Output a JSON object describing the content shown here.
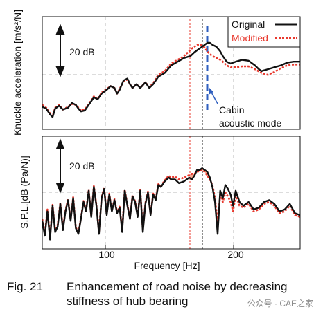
{
  "chart_data": [
    {
      "type": "line",
      "ylabel": "Knuckle acceleration [m/s²/N]",
      "xlim": [
        50,
        250
      ],
      "scale_label": "20 dB",
      "legend": {
        "position": "top-right",
        "entries": [
          "Original",
          "Modified"
        ]
      },
      "annotations": {
        "mode_label_line1": "Cabin",
        "mode_label_line2": "acoustic mode",
        "mode_x": 181
      },
      "series": [
        {
          "name": "Original",
          "color": "#111111",
          "x": [
            50,
            53,
            56,
            58,
            60,
            63,
            66,
            70,
            73,
            76,
            78,
            80,
            83,
            86,
            88,
            90,
            93,
            96,
            100,
            103,
            106,
            108,
            110,
            113,
            116,
            118,
            120,
            123,
            126,
            130,
            133,
            136,
            140,
            145,
            150,
            155,
            160,
            165,
            168,
            170,
            173,
            176,
            178,
            180,
            182,
            185,
            188,
            190,
            193,
            196,
            200,
            205,
            210,
            215,
            218,
            220,
            225,
            230,
            235,
            240,
            245,
            250
          ],
          "y": [
            4,
            2,
            -4,
            -7,
            2,
            5,
            1,
            3,
            8,
            6,
            2,
            -1,
            0,
            6,
            10,
            14,
            12,
            18,
            22,
            26,
            24,
            18,
            22,
            32,
            34,
            28,
            24,
            28,
            24,
            30,
            24,
            28,
            36,
            40,
            48,
            52,
            56,
            58,
            62,
            64,
            67,
            70,
            72,
            72,
            70,
            68,
            63,
            58,
            52,
            50,
            52,
            54,
            53,
            48,
            44,
            42,
            44,
            46,
            48,
            51,
            52,
            52
          ]
        },
        {
          "name": "Modified",
          "color": "#e8382d",
          "x": [
            50,
            53,
            56,
            58,
            60,
            63,
            66,
            70,
            73,
            76,
            78,
            80,
            83,
            86,
            88,
            90,
            93,
            96,
            100,
            103,
            106,
            108,
            110,
            113,
            116,
            118,
            120,
            123,
            126,
            130,
            133,
            136,
            140,
            145,
            150,
            155,
            160,
            163,
            166,
            168,
            170,
            173,
            176,
            178,
            180,
            182,
            185,
            188,
            190,
            193,
            196,
            200,
            205,
            210,
            215,
            220,
            225,
            230,
            235,
            240,
            245,
            250
          ],
          "y": [
            6,
            3,
            -3,
            -6,
            3,
            6,
            1,
            4,
            7,
            6,
            3,
            0,
            1,
            7,
            11,
            15,
            12,
            19,
            23,
            26,
            24,
            18,
            23,
            31,
            33,
            28,
            24,
            28,
            24,
            30,
            25,
            29,
            38,
            42,
            50,
            54,
            58,
            62,
            66,
            68,
            70,
            70,
            67,
            63,
            60,
            58,
            56,
            54,
            52,
            48,
            46,
            46,
            47,
            47,
            44,
            40,
            38,
            41,
            45,
            48,
            49,
            49
          ]
        }
      ]
    },
    {
      "type": "line",
      "ylabel": "S.P.L.[dB (Pa/N)]",
      "xlabel": "Frequency [Hz]",
      "xlim": [
        50,
        250
      ],
      "xticks": [
        100,
        200
      ],
      "scale_label": "20 dB",
      "series": [
        {
          "name": "Original",
          "color": "#111111",
          "x": [
            50,
            52,
            54,
            56,
            58,
            60,
            62,
            64,
            66,
            68,
            70,
            72,
            74,
            76,
            78,
            80,
            82,
            84,
            86,
            88,
            90,
            92,
            94,
            96,
            98,
            100,
            102,
            104,
            106,
            108,
            110,
            112,
            114,
            116,
            118,
            120,
            122,
            124,
            126,
            128,
            130,
            132,
            134,
            136,
            138,
            140,
            142,
            145,
            148,
            150,
            153,
            156,
            160,
            164,
            166,
            168,
            170,
            172,
            174,
            176,
            178,
            180,
            182,
            184,
            186,
            188,
            190,
            192,
            194,
            196,
            198,
            200,
            203,
            206,
            210,
            214,
            218,
            222,
            226,
            230,
            234,
            238,
            242,
            246,
            250
          ],
          "y": [
            20,
            4,
            30,
            0,
            36,
            8,
            14,
            38,
            10,
            30,
            42,
            20,
            44,
            12,
            6,
            22,
            40,
            30,
            52,
            24,
            56,
            36,
            6,
            44,
            54,
            26,
            48,
            30,
            42,
            28,
            34,
            8,
            52,
            36,
            22,
            46,
            40,
            24,
            52,
            8,
            38,
            50,
            26,
            48,
            42,
            58,
            56,
            62,
            66,
            64,
            64,
            60,
            62,
            66,
            64,
            68,
            74,
            74,
            76,
            74,
            72,
            66,
            56,
            40,
            6,
            52,
            44,
            58,
            54,
            48,
            36,
            52,
            40,
            36,
            40,
            32,
            34,
            40,
            42,
            38,
            30,
            32,
            38,
            28,
            26
          ]
        },
        {
          "name": "Modified",
          "color": "#e8382d",
          "x": [
            50,
            52,
            54,
            56,
            58,
            60,
            62,
            64,
            66,
            68,
            70,
            72,
            74,
            76,
            78,
            80,
            82,
            84,
            86,
            88,
            90,
            92,
            94,
            96,
            98,
            100,
            102,
            104,
            106,
            108,
            110,
            112,
            114,
            116,
            118,
            120,
            122,
            124,
            126,
            128,
            130,
            132,
            134,
            136,
            138,
            140,
            142,
            145,
            148,
            150,
            153,
            156,
            160,
            163,
            166,
            168,
            170,
            172,
            174,
            176,
            178,
            180,
            182,
            184,
            186,
            188,
            190,
            192,
            194,
            196,
            198,
            200,
            203,
            206,
            210,
            214,
            218,
            222,
            226,
            230,
            234,
            238,
            242,
            246,
            250
          ],
          "y": [
            22,
            6,
            32,
            2,
            37,
            10,
            16,
            39,
            12,
            31,
            43,
            21,
            45,
            13,
            7,
            23,
            41,
            31,
            53,
            25,
            57,
            37,
            8,
            45,
            55,
            27,
            49,
            31,
            43,
            29,
            35,
            10,
            53,
            37,
            23,
            47,
            41,
            25,
            53,
            10,
            39,
            51,
            27,
            49,
            43,
            59,
            57,
            63,
            68,
            66,
            67,
            64,
            66,
            68,
            70,
            70,
            72,
            73,
            74,
            72,
            68,
            64,
            58,
            44,
            18,
            48,
            40,
            50,
            46,
            40,
            30,
            48,
            36,
            34,
            38,
            30,
            32,
            38,
            40,
            36,
            28,
            30,
            36,
            26,
            24
          ]
        }
      ]
    }
  ],
  "caption": {
    "number": "Fig. 21",
    "line1": "Enhancement of road noise by decreasing",
    "line2": "stiffness of hub bearing"
  },
  "watermark": "公众号 · CAE之家"
}
